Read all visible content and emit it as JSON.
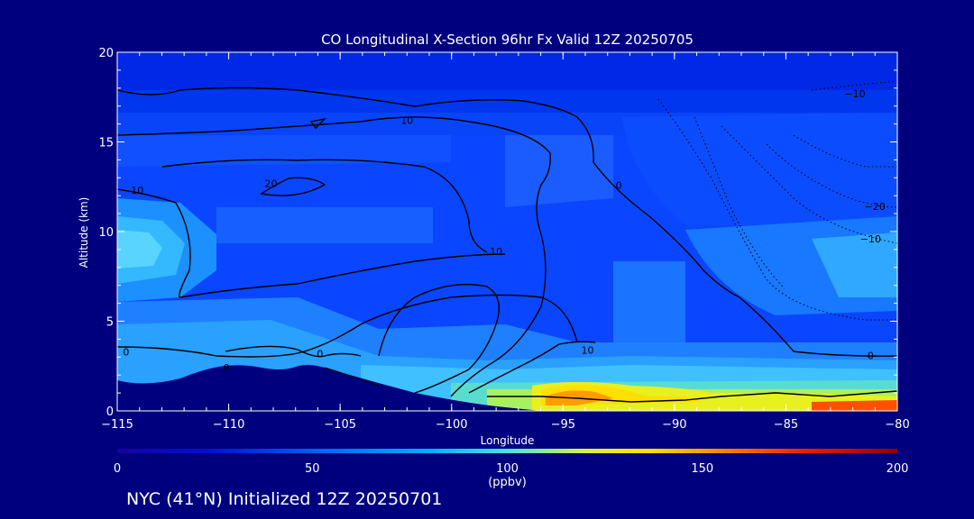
{
  "chart_data": {
    "type": "heatmap",
    "title": "CO Longitudinal X-Section 96hr  Fx Valid 12Z 20250705",
    "xlabel": "Longitude",
    "ylabel": "Altitude (km)",
    "xlim": [
      -115,
      -80
    ],
    "ylim": [
      0,
      20
    ],
    "xticks": [
      "−115",
      "−110",
      "−105",
      "−100",
      "−95",
      "−90",
      "−85",
      "−80"
    ],
    "yticks": [
      "0",
      "5",
      "10",
      "15",
      "20"
    ],
    "colorbar": {
      "ticks": [
        "0",
        "50",
        "100",
        "150",
        "200"
      ],
      "units": "(ppbv)",
      "range": [
        0,
        200
      ]
    },
    "contour_labels": [
      {
        "text": "10",
        "lon": -102.0,
        "alt": 16.2
      },
      {
        "text": "10",
        "lon": -114.1,
        "alt": 12.3
      },
      {
        "text": "20",
        "lon": -108.1,
        "alt": 12.7
      },
      {
        "text": "10",
        "lon": -98.0,
        "alt": 8.9
      },
      {
        "text": "10",
        "lon": -93.9,
        "alt": 3.4
      },
      {
        "text": "0",
        "lon": -114.6,
        "alt": 3.3
      },
      {
        "text": "0",
        "lon": -105.9,
        "alt": 3.2
      },
      {
        "text": "0",
        "lon": -110.1,
        "alt": 2.4
      },
      {
        "text": "0",
        "lon": -92.5,
        "alt": 12.6
      },
      {
        "text": "−10",
        "lon": -81.9,
        "alt": 17.7
      },
      {
        "text": "−20",
        "lon": -81.0,
        "alt": 11.4
      },
      {
        "text": "−10",
        "lon": -81.2,
        "alt": 9.6
      },
      {
        "text": "0",
        "lon": -81.2,
        "alt": 3.1
      }
    ]
  },
  "footer": "NYC (41°N) Initialized 12Z 20250701",
  "colors": {
    "background": "#00007f",
    "axes": "#ffffff",
    "contour": "#000000",
    "terrain": "#00007f"
  }
}
